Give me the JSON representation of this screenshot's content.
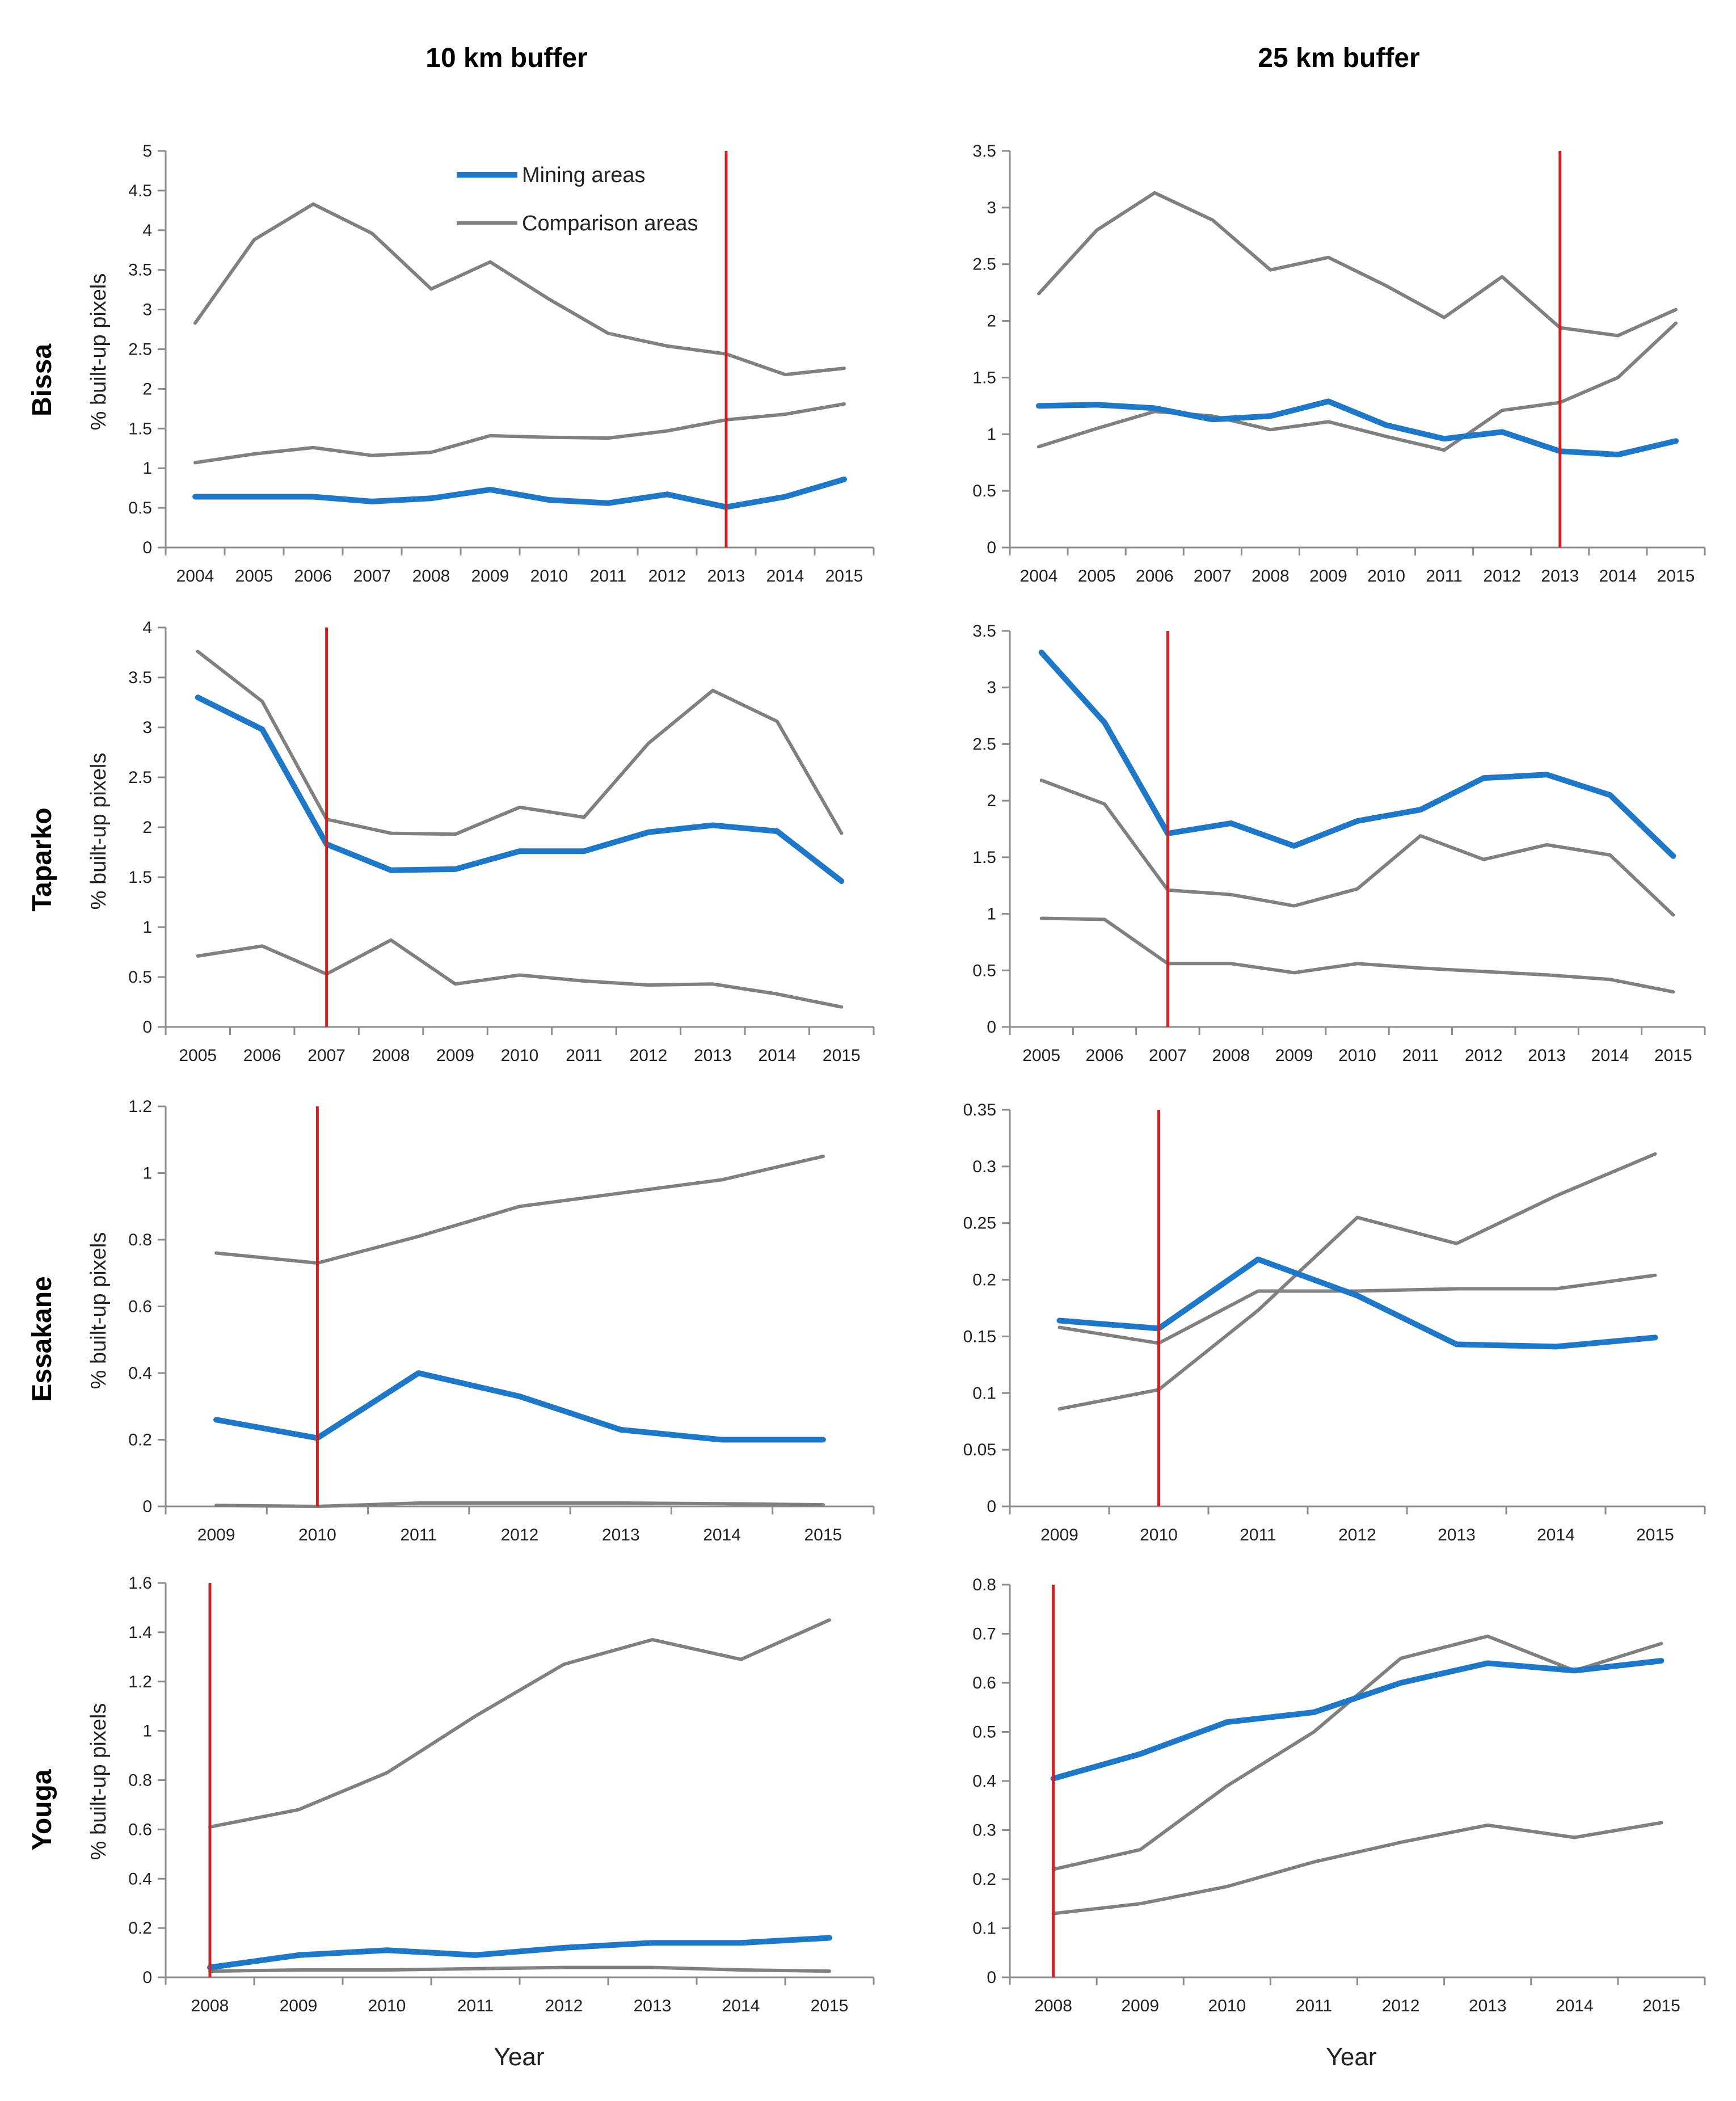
{
  "figure": {
    "col_titles": [
      "10 km buffer",
      "25 km buffer"
    ],
    "row_titles": [
      "Bissa",
      "Taparko",
      "Essakane",
      "Youga"
    ],
    "ylabel": "% built-up pixels",
    "xlabel": "Year",
    "legend": {
      "mining": "Mining areas",
      "comparison": "Comparison areas"
    }
  },
  "colors": {
    "mining": "#1f77c8",
    "comparison": "#808080",
    "event": "#d42020",
    "axis": "#8c8c8c"
  },
  "chart_data": [
    {
      "id": "bissa-10",
      "type": "line",
      "x": [
        "2004",
        "2005",
        "2006",
        "2007",
        "2008",
        "2009",
        "2010",
        "2011",
        "2012",
        "2013",
        "2014",
        "2015"
      ],
      "ylim": [
        0,
        5
      ],
      "yticks": [
        "0",
        "0.5",
        "1",
        "1.5",
        "2",
        "2.5",
        "3",
        "3.5",
        "4",
        "4.5",
        "5"
      ],
      "event_x": "2013",
      "series": [
        {
          "name": "Mining areas",
          "kind": "mining",
          "values": [
            0.64,
            0.64,
            0.64,
            0.58,
            0.62,
            0.73,
            0.6,
            0.56,
            0.67,
            0.51,
            0.64,
            0.86
          ]
        },
        {
          "name": "Comparison areas",
          "kind": "comparison",
          "values": [
            2.83,
            3.88,
            4.33,
            3.96,
            3.26,
            3.6,
            3.13,
            2.7,
            2.54,
            2.44,
            2.18,
            2.26
          ]
        },
        {
          "name": "Comparison areas",
          "kind": "comparison",
          "values": [
            1.07,
            1.18,
            1.26,
            1.16,
            1.2,
            1.41,
            1.39,
            1.38,
            1.47,
            1.61,
            1.68,
            1.81
          ]
        }
      ]
    },
    {
      "id": "bissa-25",
      "type": "line",
      "x": [
        "2004",
        "2005",
        "2006",
        "2007",
        "2008",
        "2009",
        "2010",
        "2011",
        "2012",
        "2013",
        "2014",
        "2015"
      ],
      "ylim": [
        0,
        3.5
      ],
      "yticks": [
        "0",
        "0.5",
        "1",
        "1.5",
        "2",
        "2.5",
        "3",
        "3.5"
      ],
      "event_x": "2013",
      "series": [
        {
          "name": "Mining areas",
          "kind": "mining",
          "values": [
            1.25,
            1.26,
            1.23,
            1.13,
            1.16,
            1.29,
            1.08,
            0.96,
            1.02,
            0.85,
            0.82,
            0.94
          ]
        },
        {
          "name": "Comparison areas",
          "kind": "comparison",
          "values": [
            2.24,
            2.8,
            3.13,
            2.89,
            2.45,
            2.56,
            2.31,
            2.03,
            2.39,
            1.94,
            1.87,
            2.1
          ]
        },
        {
          "name": "Comparison areas",
          "kind": "comparison",
          "values": [
            0.89,
            1.05,
            1.2,
            1.16,
            1.04,
            1.11,
            0.98,
            0.86,
            1.21,
            1.28,
            1.5,
            1.98
          ]
        }
      ]
    },
    {
      "id": "taparko-10",
      "type": "line",
      "x": [
        "2005",
        "2006",
        "2007",
        "2008",
        "2009",
        "2010",
        "2011",
        "2012",
        "2013",
        "2014",
        "2015"
      ],
      "ylim": [
        0,
        4
      ],
      "yticks": [
        "0",
        "0.5",
        "1",
        "1.5",
        "2",
        "2.5",
        "3",
        "3.5",
        "4"
      ],
      "event_x": "2007",
      "series": [
        {
          "name": "Mining areas",
          "kind": "mining",
          "values": [
            3.3,
            2.98,
            1.83,
            1.57,
            1.58,
            1.76,
            1.76,
            1.95,
            2.02,
            1.96,
            1.46
          ]
        },
        {
          "name": "Comparison areas",
          "kind": "comparison",
          "values": [
            3.76,
            3.26,
            2.08,
            1.94,
            1.93,
            2.2,
            2.1,
            2.84,
            3.37,
            3.06,
            1.94
          ]
        },
        {
          "name": "Comparison areas",
          "kind": "comparison",
          "values": [
            0.71,
            0.81,
            0.53,
            0.87,
            0.43,
            0.52,
            0.46,
            0.42,
            0.43,
            0.33,
            0.2
          ]
        }
      ]
    },
    {
      "id": "taparko-25",
      "type": "line",
      "x": [
        "2005",
        "2006",
        "2007",
        "2008",
        "2009",
        "2010",
        "2011",
        "2012",
        "2013",
        "2014",
        "2015"
      ],
      "ylim": [
        0,
        3.5
      ],
      "yticks": [
        "0",
        "0.5",
        "1",
        "1.5",
        "2",
        "2.5",
        "3",
        "3.5"
      ],
      "event_x": "2007",
      "series": [
        {
          "name": "Mining areas",
          "kind": "mining",
          "values": [
            3.31,
            2.69,
            1.71,
            1.8,
            1.6,
            1.82,
            1.92,
            2.2,
            2.23,
            2.05,
            1.51
          ]
        },
        {
          "name": "Comparison areas",
          "kind": "comparison",
          "values": [
            2.18,
            1.97,
            1.21,
            1.17,
            1.07,
            1.22,
            1.69,
            1.48,
            1.61,
            1.52,
            0.99
          ]
        },
        {
          "name": "Comparison areas",
          "kind": "comparison",
          "values": [
            0.96,
            0.95,
            0.56,
            0.56,
            0.48,
            0.56,
            0.52,
            0.49,
            0.46,
            0.42,
            0.31
          ]
        }
      ]
    },
    {
      "id": "essakane-10",
      "type": "line",
      "x": [
        "2009",
        "2010",
        "2011",
        "2012",
        "2013",
        "2014",
        "2015"
      ],
      "ylim": [
        0,
        1.2
      ],
      "yticks": [
        "0",
        "0.2",
        "0.4",
        "0.6",
        "0.8",
        "1",
        "1.2"
      ],
      "event_x": "2010",
      "series": [
        {
          "name": "Mining areas",
          "kind": "mining",
          "values": [
            0.26,
            0.205,
            0.4,
            0.33,
            0.23,
            0.2,
            0.2
          ]
        },
        {
          "name": "Comparison areas",
          "kind": "comparison",
          "values": [
            0.76,
            0.73,
            0.81,
            0.9,
            0.94,
            0.98,
            1.05
          ]
        },
        {
          "name": "Comparison areas",
          "kind": "comparison",
          "values": [
            0.003,
            0.0,
            0.01,
            0.01,
            0.01,
            0.008,
            0.005
          ]
        }
      ]
    },
    {
      "id": "essakane-25",
      "type": "line",
      "x": [
        "2009",
        "2010",
        "2011",
        "2012",
        "2013",
        "2014",
        "2015"
      ],
      "ylim": [
        0,
        0.35
      ],
      "yticks": [
        "0",
        "0.05",
        "0.1",
        "0.15",
        "0.2",
        "0.25",
        "0.3",
        "0.35"
      ],
      "event_x": "2010",
      "series": [
        {
          "name": "Mining areas",
          "kind": "mining",
          "values": [
            0.164,
            0.157,
            0.218,
            0.186,
            0.143,
            0.141,
            0.149
          ]
        },
        {
          "name": "Comparison areas",
          "kind": "comparison",
          "values": [
            0.158,
            0.144,
            0.19,
            0.19,
            0.192,
            0.192,
            0.204
          ]
        },
        {
          "name": "Comparison areas",
          "kind": "comparison",
          "values": [
            0.086,
            0.103,
            0.173,
            0.255,
            0.232,
            0.274,
            0.311
          ]
        }
      ]
    },
    {
      "id": "youga-10",
      "type": "line",
      "x": [
        "2008",
        "2009",
        "2010",
        "2011",
        "2012",
        "2013",
        "2014",
        "2015"
      ],
      "ylim": [
        0,
        1.6
      ],
      "yticks": [
        "0",
        "0.2",
        "0.4",
        "0.6",
        "0.8",
        "1",
        "1.2",
        "1.4",
        "1.6"
      ],
      "event_x": "2008",
      "series": [
        {
          "name": "Mining areas",
          "kind": "mining",
          "values": [
            0.04,
            0.09,
            0.11,
            0.09,
            0.12,
            0.14,
            0.14,
            0.16
          ]
        },
        {
          "name": "Comparison areas",
          "kind": "comparison",
          "values": [
            0.61,
            0.68,
            0.83,
            1.06,
            1.27,
            1.37,
            1.29,
            1.45
          ]
        },
        {
          "name": "Comparison areas",
          "kind": "comparison",
          "values": [
            0.025,
            0.03,
            0.03,
            0.035,
            0.04,
            0.04,
            0.03,
            0.025
          ]
        }
      ]
    },
    {
      "id": "youga-25",
      "type": "line",
      "x": [
        "2008",
        "2009",
        "2010",
        "2011",
        "2012",
        "2013",
        "2014",
        "2015"
      ],
      "ylim": [
        0,
        0.8
      ],
      "yticks": [
        "0",
        "0.1",
        "0.2",
        "0.3",
        "0.4",
        "0.5",
        "0.6",
        "0.7",
        "0.8"
      ],
      "event_x": "2008",
      "series": [
        {
          "name": "Mining areas",
          "kind": "mining",
          "values": [
            0.405,
            0.455,
            0.52,
            0.54,
            0.6,
            0.64,
            0.625,
            0.645
          ]
        },
        {
          "name": "Comparison areas",
          "kind": "comparison",
          "values": [
            0.22,
            0.26,
            0.39,
            0.5,
            0.65,
            0.695,
            0.625,
            0.68
          ]
        },
        {
          "name": "Comparison areas",
          "kind": "comparison",
          "values": [
            0.13,
            0.15,
            0.185,
            0.235,
            0.275,
            0.31,
            0.285,
            0.315
          ]
        }
      ]
    }
  ]
}
